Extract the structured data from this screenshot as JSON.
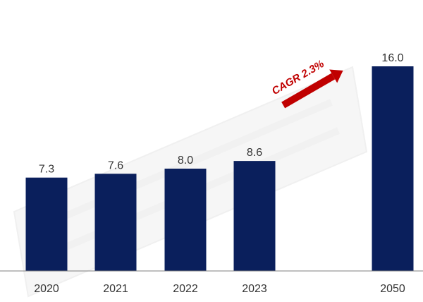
{
  "chart_data": {
    "type": "bar",
    "categories": [
      "2020",
      "2021",
      "2022",
      "2023",
      "2050"
    ],
    "values": [
      7.3,
      7.6,
      8.0,
      8.6,
      16.0
    ],
    "data_labels": [
      "7.3",
      "7.6",
      "8.0",
      "8.6",
      "16.0"
    ],
    "title": "",
    "xlabel": "",
    "ylabel": "",
    "ylim": [
      0,
      17.5
    ],
    "grid": false,
    "legend": "none",
    "category_gap_after": "2023",
    "annotation": {
      "text": "CAGR 2.3%",
      "arrow": "up-right",
      "color": "#c00000"
    }
  },
  "colors": {
    "bar": "#0a1f5c",
    "axis": "#7f7f7f",
    "label_text": "#333333",
    "watermark": "#e5e5e5"
  }
}
